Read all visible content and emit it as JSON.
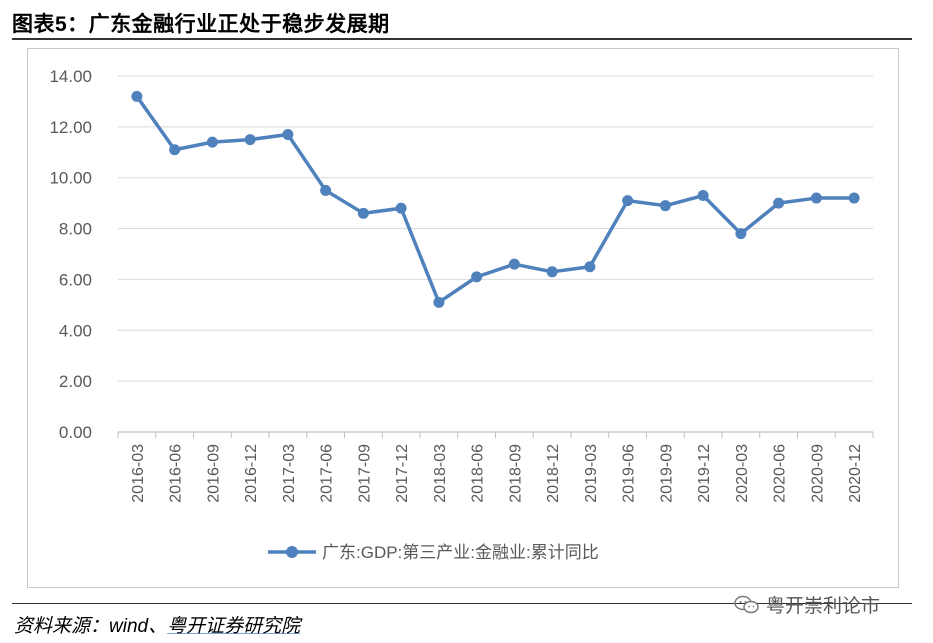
{
  "figure": {
    "title": "图表5：广东金融行业正处于稳步发展期",
    "source_prefix": "资料来源：wind、",
    "source_org": "粤开证券研究院",
    "watermark_text": "粤开崇利论市"
  },
  "chart_data": {
    "type": "line",
    "title": "",
    "xlabel": "",
    "ylabel": "",
    "ylim": [
      0,
      14
    ],
    "yticks": [
      0,
      2,
      4,
      6,
      8,
      10,
      12,
      14
    ],
    "ytick_labels": [
      "0.00",
      "2.00",
      "4.00",
      "6.00",
      "8.00",
      "10.00",
      "12.00",
      "14.00"
    ],
    "grid": true,
    "legend_position": "bottom-center",
    "categories": [
      "2016-03",
      "2016-06",
      "2016-09",
      "2016-12",
      "2017-03",
      "2017-06",
      "2017-09",
      "2017-12",
      "2018-03",
      "2018-06",
      "2018-09",
      "2018-12",
      "2019-03",
      "2019-06",
      "2019-09",
      "2019-12",
      "2020-03",
      "2020-06",
      "2020-09",
      "2020-12"
    ],
    "series": [
      {
        "name": "广东:GDP:第三产业:金融业:累计同比",
        "color": "#4f81bd",
        "values": [
          13.2,
          11.1,
          11.4,
          11.5,
          11.7,
          9.5,
          8.6,
          8.8,
          5.1,
          6.1,
          6.6,
          6.3,
          6.5,
          9.1,
          8.9,
          9.3,
          7.8,
          9.0,
          9.2,
          9.2
        ]
      }
    ]
  }
}
